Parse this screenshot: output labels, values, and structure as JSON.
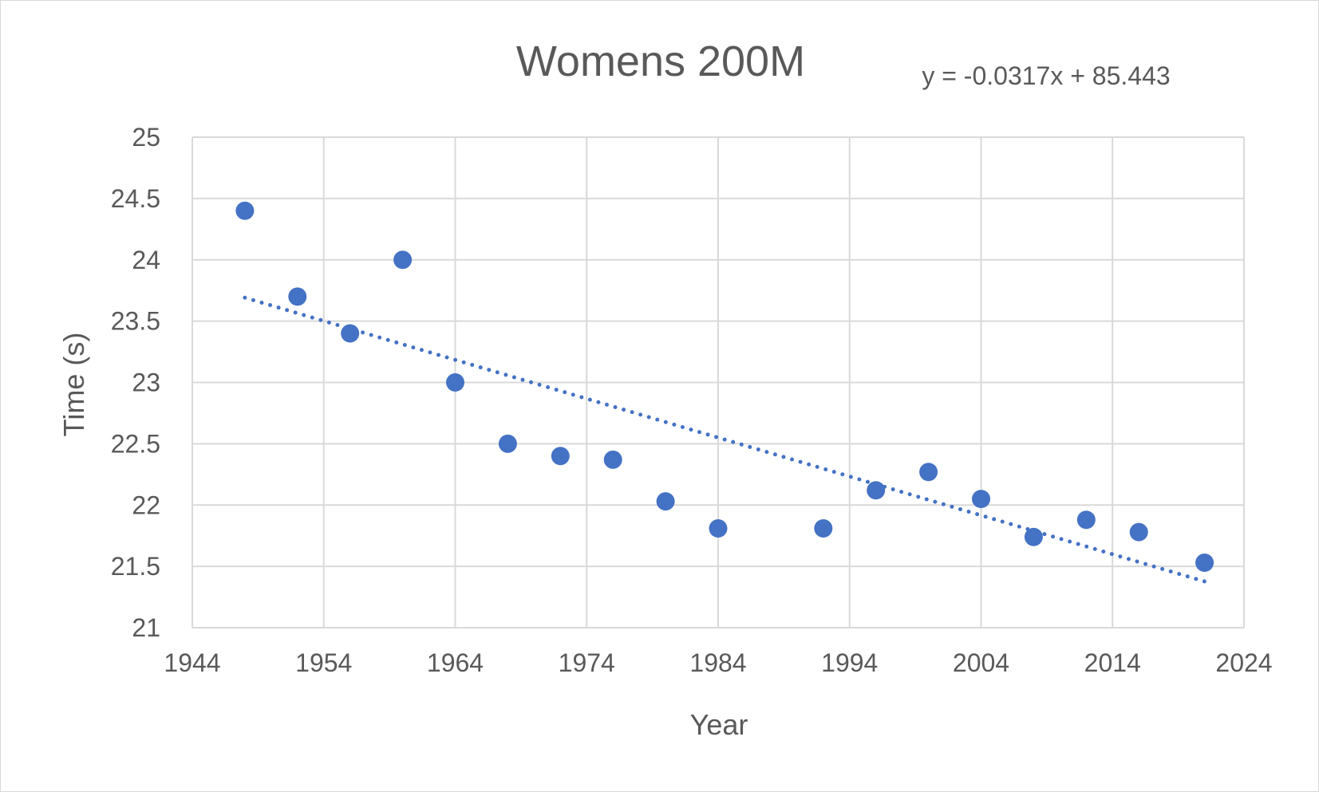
{
  "chart_data": {
    "type": "scatter",
    "title": "Womens 200M",
    "xlabel": "Year",
    "ylabel": "Time (s)",
    "xlim": [
      1944,
      2024
    ],
    "ylim": [
      21,
      25
    ],
    "x_ticks": [
      1944,
      1954,
      1964,
      1974,
      1984,
      1994,
      2004,
      2014,
      2024
    ],
    "y_ticks": [
      21,
      21.5,
      22,
      22.5,
      23,
      23.5,
      24,
      24.5,
      25
    ],
    "grid": true,
    "legend": "none",
    "marker_color": "#4472c4",
    "series": [
      {
        "x": [
          1948,
          1952,
          1956,
          1960,
          1964,
          1968,
          1972,
          1976,
          1980,
          1984,
          1992,
          1996,
          2000,
          2004,
          2008,
          2012,
          2016,
          2021
        ],
        "y": [
          24.4,
          23.7,
          23.4,
          24.0,
          23.0,
          22.5,
          22.4,
          22.37,
          22.03,
          21.81,
          21.81,
          22.12,
          22.27,
          22.05,
          21.74,
          21.88,
          21.78,
          21.53
        ]
      }
    ],
    "trendline": {
      "type": "linear",
      "style": "dotted",
      "slope": -0.0317,
      "intercept": 85.443,
      "x_range": [
        1948,
        2021
      ],
      "equation_label": "y = -0.0317x + 85.443"
    }
  }
}
